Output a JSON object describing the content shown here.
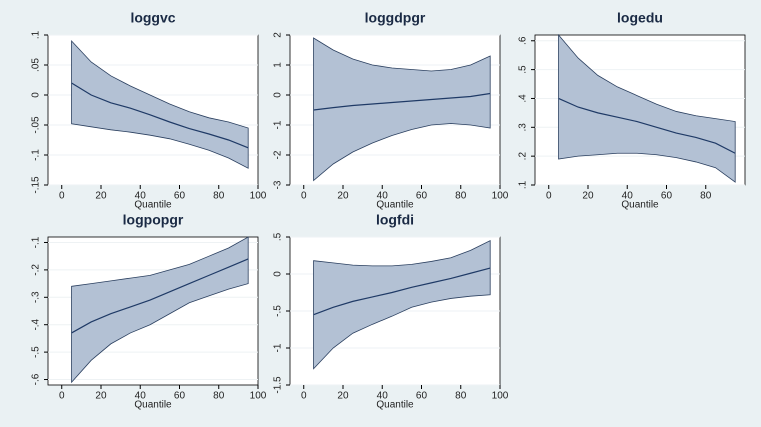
{
  "chart_data": [
    {
      "type": "band",
      "title": "loggvc",
      "xlabel": "Quantile",
      "x": [
        5,
        15,
        25,
        35,
        45,
        55,
        65,
        75,
        85,
        95
      ],
      "values": [
        0.02,
        0.0,
        -0.013,
        -0.022,
        -0.033,
        -0.045,
        -0.056,
        -0.065,
        -0.075,
        -0.088
      ],
      "upper": [
        0.09,
        0.055,
        0.032,
        0.015,
        0.0,
        -0.015,
        -0.028,
        -0.038,
        -0.045,
        -0.055
      ],
      "lower": [
        -0.048,
        -0.053,
        -0.058,
        -0.062,
        -0.067,
        -0.073,
        -0.082,
        -0.092,
        -0.105,
        -0.122
      ],
      "xlim": [
        -7,
        100
      ],
      "xticks": [
        0,
        20,
        40,
        60,
        80,
        100
      ],
      "ylim": [
        -0.15,
        0.1
      ],
      "yticks": [
        {
          "value": -0.15,
          "label": "-.15"
        },
        {
          "value": -0.1,
          "label": "-.1"
        },
        {
          "value": -0.05,
          "label": "-.05"
        },
        0,
        {
          "value": 0.05,
          "label": ".05"
        },
        {
          "value": 0.1,
          "label": ".1"
        }
      ],
      "color": "#1f3a66",
      "band_color": "#b3c1d4",
      "grid": true
    },
    {
      "type": "band",
      "title": "loggdpgr",
      "xlabel": "Quantile",
      "x": [
        5,
        15,
        25,
        35,
        45,
        55,
        65,
        75,
        85,
        95
      ],
      "values": [
        -0.5,
        -0.42,
        -0.35,
        -0.3,
        -0.25,
        -0.2,
        -0.15,
        -0.1,
        -0.05,
        0.05
      ],
      "upper": [
        1.9,
        1.5,
        1.2,
        1.0,
        0.9,
        0.85,
        0.8,
        0.85,
        1.0,
        1.3
      ],
      "lower": [
        -2.85,
        -2.3,
        -1.9,
        -1.6,
        -1.35,
        -1.15,
        -1.0,
        -0.95,
        -1.0,
        -1.1
      ],
      "xlim": [
        -7,
        100
      ],
      "xticks": [
        0,
        20,
        40,
        60,
        80,
        100
      ],
      "ylim": [
        -3,
        2
      ],
      "yticks": [
        -3,
        -2,
        -1,
        0,
        1,
        2
      ],
      "color": "#1f3a66",
      "band_color": "#b3c1d4",
      "grid": true
    },
    {
      "type": "band",
      "title": "logedu",
      "xlabel": "Quantile",
      "x": [
        5,
        15,
        25,
        35,
        45,
        55,
        65,
        75,
        85,
        95
      ],
      "values": [
        0.4,
        0.37,
        0.35,
        0.335,
        0.32,
        0.3,
        0.28,
        0.265,
        0.245,
        0.21
      ],
      "upper": [
        0.62,
        0.54,
        0.48,
        0.44,
        0.41,
        0.38,
        0.355,
        0.34,
        0.33,
        0.32
      ],
      "lower": [
        0.19,
        0.2,
        0.205,
        0.21,
        0.21,
        0.205,
        0.195,
        0.18,
        0.16,
        0.11
      ],
      "xlim": [
        -7,
        100
      ],
      "xticks": [
        0,
        20,
        40,
        60,
        80
      ],
      "ylim": [
        0.1,
        0.62
      ],
      "yticks": [
        {
          "value": 0.1,
          "label": ".1"
        },
        {
          "value": 0.2,
          "label": ".2"
        },
        {
          "value": 0.3,
          "label": ".3"
        },
        {
          "value": 0.4,
          "label": ".4"
        },
        {
          "value": 0.5,
          "label": ".5"
        },
        {
          "value": 0.6,
          "label": ".6"
        }
      ],
      "color": "#1f3a66",
      "band_color": "#b3c1d4",
      "grid": true
    },
    {
      "type": "band",
      "title": "logpopgr",
      "xlabel": "Quantile",
      "x": [
        5,
        15,
        25,
        35,
        45,
        55,
        65,
        75,
        85,
        95
      ],
      "values": [
        -0.43,
        -0.39,
        -0.36,
        -0.335,
        -0.31,
        -0.28,
        -0.25,
        -0.22,
        -0.19,
        -0.16
      ],
      "upper": [
        -0.26,
        -0.25,
        -0.24,
        -0.23,
        -0.22,
        -0.2,
        -0.18,
        -0.15,
        -0.12,
        -0.08
      ],
      "lower": [
        -0.61,
        -0.53,
        -0.47,
        -0.43,
        -0.4,
        -0.36,
        -0.32,
        -0.295,
        -0.27,
        -0.25
      ],
      "xlim": [
        -7,
        100
      ],
      "xticks": [
        0,
        20,
        40,
        60,
        80,
        100
      ],
      "ylim": [
        -0.62,
        -0.08
      ],
      "yticks": [
        {
          "value": -0.6,
          "label": "-.6"
        },
        {
          "value": -0.5,
          "label": "-.5"
        },
        {
          "value": -0.4,
          "label": "-.4"
        },
        {
          "value": -0.3,
          "label": "-.3"
        },
        {
          "value": -0.2,
          "label": "-.2"
        },
        {
          "value": -0.1,
          "label": "-.1"
        }
      ],
      "color": "#1f3a66",
      "band_color": "#b3c1d4",
      "grid": true
    },
    {
      "type": "band",
      "title": "logfdi",
      "xlabel": "Quantile",
      "x": [
        5,
        15,
        25,
        35,
        45,
        55,
        65,
        75,
        85,
        95
      ],
      "values": [
        -0.55,
        -0.45,
        -0.37,
        -0.31,
        -0.25,
        -0.18,
        -0.12,
        -0.06,
        0.01,
        0.08
      ],
      "upper": [
        0.18,
        0.15,
        0.12,
        0.11,
        0.11,
        0.13,
        0.17,
        0.22,
        0.32,
        0.45
      ],
      "lower": [
        -1.28,
        -1.0,
        -0.8,
        -0.68,
        -0.57,
        -0.45,
        -0.38,
        -0.33,
        -0.3,
        -0.28
      ],
      "xlim": [
        -7,
        100
      ],
      "xticks": [
        0,
        20,
        40,
        60,
        80,
        100
      ],
      "ylim": [
        -1.5,
        0.5
      ],
      "yticks": [
        {
          "value": -1.5,
          "label": "-1.5"
        },
        -1,
        {
          "value": -0.5,
          "label": "-.5"
        },
        0,
        {
          "value": 0.5,
          "label": ".5"
        }
      ],
      "color": "#1f3a66",
      "band_color": "#b3c1d4",
      "grid": true
    }
  ]
}
